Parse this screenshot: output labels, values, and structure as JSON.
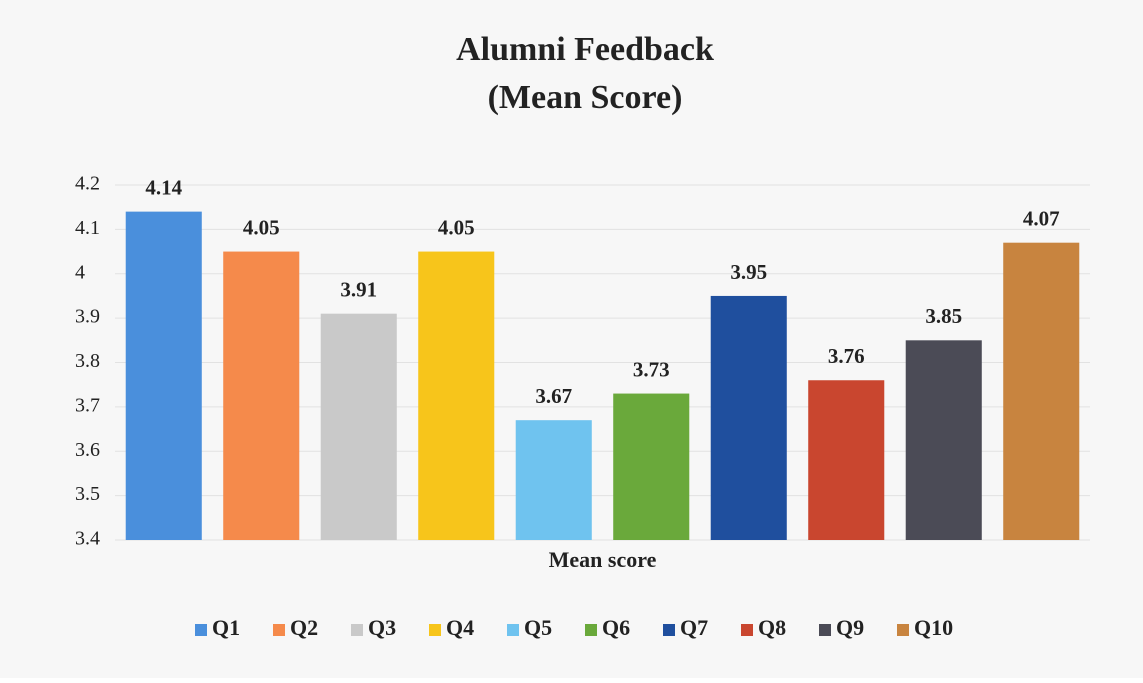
{
  "chart_data": {
    "type": "bar",
    "title": [
      "Alumni Feedback",
      "(Mean Score)"
    ],
    "categories": [
      "Mean score"
    ],
    "series": [
      {
        "name": "Q1",
        "color": "#4a8fdc",
        "values": [
          4.14
        ]
      },
      {
        "name": "Q2",
        "color": "#f58a4b",
        "values": [
          4.05
        ]
      },
      {
        "name": "Q3",
        "color": "#c9c9c9",
        "values": [
          3.91
        ]
      },
      {
        "name": "Q4",
        "color": "#f7c51b",
        "values": [
          4.05
        ]
      },
      {
        "name": "Q5",
        "color": "#6fc3ef",
        "values": [
          3.67
        ]
      },
      {
        "name": "Q6",
        "color": "#6aa93b",
        "values": [
          3.73
        ]
      },
      {
        "name": "Q7",
        "color": "#1f4f9e",
        "values": [
          3.95
        ]
      },
      {
        "name": "Q8",
        "color": "#c9462f",
        "values": [
          3.76
        ]
      },
      {
        "name": "Q9",
        "color": "#4b4b56",
        "values": [
          3.85
        ]
      },
      {
        "name": "Q10",
        "color": "#c8843f",
        "values": [
          4.07
        ]
      }
    ],
    "ylim": [
      3.4,
      4.2
    ],
    "yticks": [
      3.4,
      3.5,
      3.6,
      3.7,
      3.8,
      3.9,
      4,
      4.1,
      4.2
    ],
    "grid": true,
    "legend": "bottom"
  }
}
